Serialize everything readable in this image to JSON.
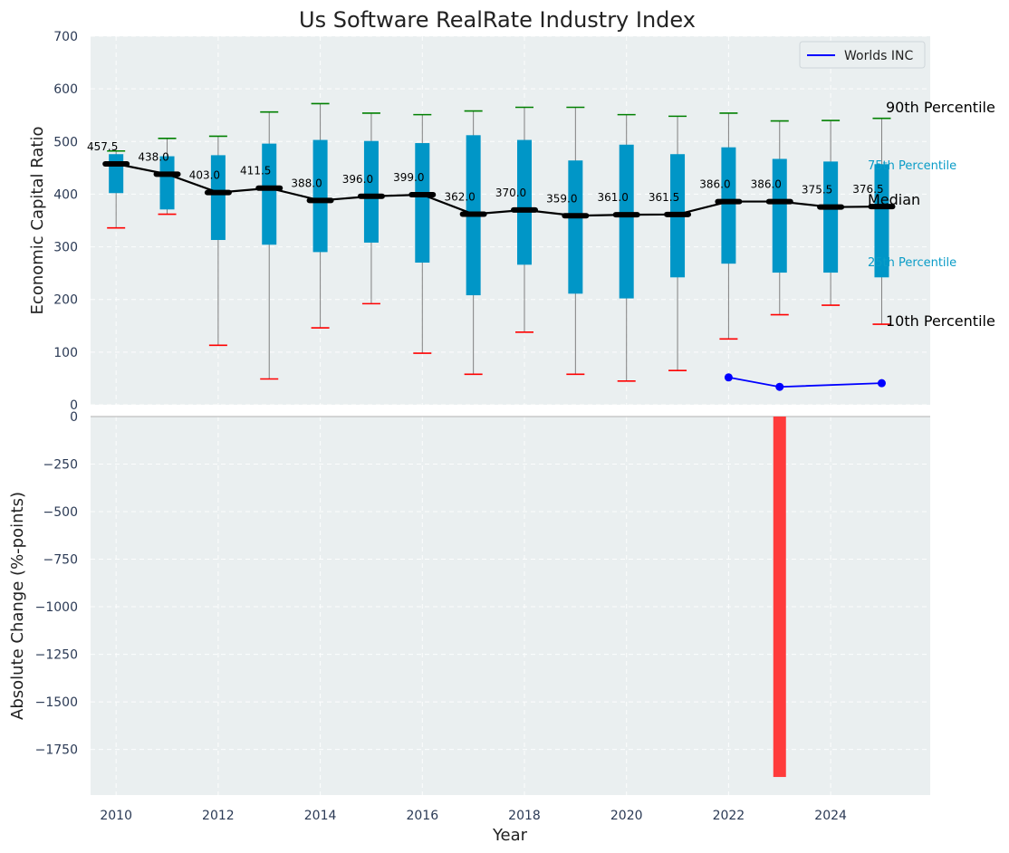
{
  "chart_data": {
    "type": "box",
    "title": "Us Software RealRate Industry Index",
    "xlabel": "Year",
    "colors": {
      "plot_background": "#eaeff0",
      "box": "#0096c7",
      "whisker": "#808080",
      "p90_cap": "#008000",
      "p10_cap": "#ff0000",
      "median_line": "#000000",
      "company_line": "#0000ff",
      "change_bar": "#ff3b3b"
    },
    "top_panel": {
      "ylabel": "Economic Capital Ratio",
      "ylim": [
        0,
        700
      ],
      "yticks": [
        "0",
        "100",
        "200",
        "300",
        "400",
        "500",
        "600",
        "700"
      ],
      "years": [
        2010,
        2011,
        2012,
        2013,
        2014,
        2015,
        2016,
        2017,
        2018,
        2019,
        2020,
        2021,
        2022,
        2023,
        2024,
        2025
      ],
      "p10": [
        336,
        362,
        113,
        49,
        146,
        192,
        98,
        58,
        138,
        58,
        45,
        65,
        125,
        171,
        189,
        153
      ],
      "p25": [
        402,
        371,
        313,
        304,
        290,
        308,
        270,
        208,
        266,
        211,
        202,
        242,
        268,
        251,
        251,
        242
      ],
      "median": [
        457.5,
        438.0,
        403.0,
        411.5,
        388.0,
        396.0,
        399.0,
        362.0,
        370.0,
        359.0,
        361.0,
        361.5,
        386.0,
        386.0,
        375.5,
        376.5
      ],
      "median_labels": [
        "457.5",
        "438.0",
        "403.0",
        "411.5",
        "388.0",
        "396.0",
        "399.0",
        "362.0",
        "370.0",
        "359.0",
        "361.0",
        "361.5",
        "386.0",
        "386.0",
        "375.5",
        "376.5"
      ],
      "p75": [
        476,
        472,
        474,
        496,
        503,
        501,
        497,
        512,
        503,
        464,
        494,
        476,
        489,
        467,
        462,
        457
      ],
      "p90": [
        482,
        506,
        510,
        556,
        572,
        554,
        551,
        558,
        565,
        565,
        551,
        548,
        554,
        539,
        540,
        544
      ],
      "company_series": {
        "name": "Worlds INC",
        "x": [
          2022,
          2023,
          2025
        ],
        "values": [
          52,
          34,
          41
        ]
      },
      "annotations": {
        "p90": "90th Percentile",
        "p75": "75th Percentile",
        "median": "Median",
        "p25": "25th Percentile",
        "p10": "10th Percentile"
      },
      "legend": {
        "placement": "top-right",
        "entries": [
          "Worlds INC"
        ]
      }
    },
    "bottom_panel": {
      "ylabel": "Absolute Change (%-points)",
      "ylim": [
        -1990,
        0
      ],
      "yticks": [
        "0",
        "−250",
        "−500",
        "−750",
        "−1000",
        "−1250",
        "−1500",
        "−1750"
      ],
      "bars": {
        "x": [
          2023
        ],
        "values": [
          -1895
        ]
      }
    },
    "xticks": [
      "2010",
      "2012",
      "2014",
      "2016",
      "2018",
      "2020",
      "2022",
      "2024"
    ],
    "xlim": [
      2009.5,
      2025.95
    ]
  }
}
